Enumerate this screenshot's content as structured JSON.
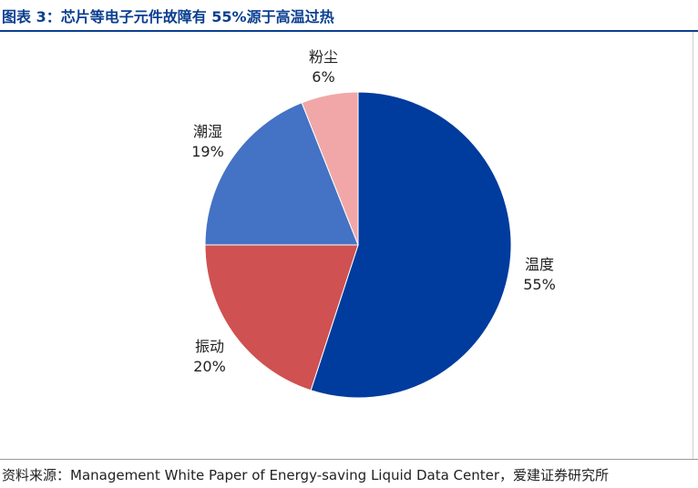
{
  "header": {
    "title": "图表 3：芯片等电子元件故障有 55%源于高温过热"
  },
  "footer": {
    "source": "资料来源：Management White Paper of Energy-saving Liquid Data Center，爱建证券研究所"
  },
  "chart_data": {
    "type": "pie",
    "title": "图表 3：芯片等电子元件故障有 55%源于高温过热",
    "start_angle_deg": 0,
    "direction": "clockwise",
    "slices": [
      {
        "label": "温度",
        "value": 55,
        "display": "55%",
        "color": "#003b9e"
      },
      {
        "label": "振动",
        "value": 20,
        "display": "20%",
        "color": "#cf5151"
      },
      {
        "label": "潮湿",
        "value": 19,
        "display": "19%",
        "color": "#4472c4"
      },
      {
        "label": "粉尘",
        "value": 6,
        "display": "6%",
        "color": "#f1a7a7"
      }
    ]
  }
}
